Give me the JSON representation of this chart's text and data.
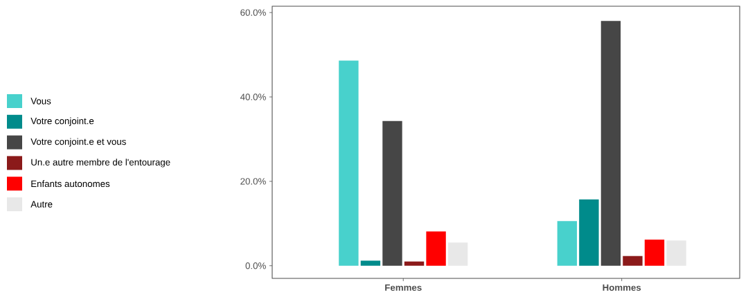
{
  "chart_data": {
    "type": "bar",
    "categories": [
      "Femmes",
      "Hommes"
    ],
    "series": [
      {
        "name": "Vous",
        "color": "#48d1cc",
        "values": [
          48.6,
          10.6
        ]
      },
      {
        "name": "Votre conjoint.e",
        "color": "#008b8b",
        "values": [
          1.2,
          15.7
        ]
      },
      {
        "name": "Votre conjoint.e et vous",
        "color": "#464646",
        "values": [
          34.3,
          58.0
        ]
      },
      {
        "name": "Un.e autre membre de l'entourage",
        "color": "#8b1a1a",
        "values": [
          1.0,
          2.3
        ]
      },
      {
        "name": "Enfants autonomes",
        "color": "#ff0000",
        "values": [
          8.1,
          6.2
        ]
      },
      {
        "name": "Autre",
        "color": "#e8e8e8",
        "values": [
          5.5,
          6.0
        ]
      }
    ],
    "ylim": [
      -3,
      61.5
    ],
    "yticks": [
      {
        "value": 0,
        "label": "0.0%"
      },
      {
        "value": 20,
        "label": "20.0%"
      },
      {
        "value": 40,
        "label": "40.0%"
      },
      {
        "value": 60,
        "label": "60.0%"
      }
    ],
    "grid": false,
    "legend": "left"
  }
}
